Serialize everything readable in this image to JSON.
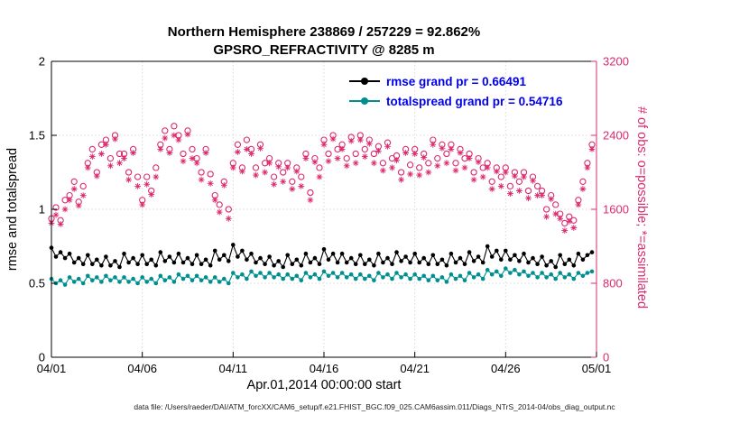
{
  "colors": {
    "pink": "#dc2a6e",
    "teal": "#008f8f",
    "black": "#000000",
    "legend_text": "#0000ee",
    "grid": "#d9d9d9"
  },
  "footer": {
    "text": "data file: /Users/raeder/DAI/ATM_forcXX/CAM6_setup/f.e21.FHIST_BGC.f09_025.CAM6assim.011/Diags_NTrS_2014-04/obs_diag_output.nc"
  },
  "chart_data": {
    "type": "line",
    "title1": "Northern Hemisphere 238869 / 257229 = 92.862%",
    "title2": "GPSRO_REFRACTIVITY @ 8285 m",
    "xlabel": "Apr.01,2014 00:00:00 start",
    "ylabel_left": "rmse and totalspread",
    "ylabel_right": "# of obs: o=possible; *=assimilated",
    "xlim": [
      0,
      30
    ],
    "ylim_left": [
      0,
      2
    ],
    "ylim_right": [
      0,
      3200
    ],
    "grid": true,
    "xtick_days": [
      0,
      5,
      10,
      15,
      20,
      25,
      30
    ],
    "xtick_labels": [
      "04/01",
      "04/06",
      "04/11",
      "04/16",
      "04/21",
      "04/26",
      "05/01"
    ],
    "yticks_left_values": [
      0,
      0.5,
      1,
      1.5,
      2
    ],
    "ytick_labels_left": [
      "0",
      "0.5",
      "1",
      "1.5",
      "2"
    ],
    "yticks_right_values": [
      0,
      800,
      1600,
      2400,
      3200
    ],
    "ytick_labels_right": [
      "0",
      "800",
      "1600",
      "2400",
      "3200"
    ],
    "x_days": {
      "start": 0,
      "step": 0.25,
      "count": 120
    },
    "legend": {
      "position": "top-center",
      "entries": [
        {
          "label": "rmse grand pr = 0.66491",
          "color": "#000000",
          "marker": "dot-line"
        },
        {
          "label": "totalspread grand pr = 0.54716",
          "color": "#008f8f",
          "marker": "dot-line"
        }
      ]
    },
    "series": [
      {
        "name": "rmse",
        "axis": "left",
        "style": "line",
        "marker": "dot",
        "color": "#000000",
        "values": [
          0.74,
          0.68,
          0.71,
          0.67,
          0.7,
          0.64,
          0.67,
          0.63,
          0.69,
          0.63,
          0.66,
          0.62,
          0.68,
          0.62,
          0.65,
          0.61,
          0.7,
          0.64,
          0.67,
          0.63,
          0.69,
          0.63,
          0.66,
          0.62,
          0.71,
          0.65,
          0.68,
          0.64,
          0.7,
          0.64,
          0.67,
          0.63,
          0.69,
          0.63,
          0.66,
          0.62,
          0.72,
          0.66,
          0.69,
          0.65,
          0.76,
          0.68,
          0.72,
          0.66,
          0.7,
          0.64,
          0.67,
          0.63,
          0.68,
          0.62,
          0.65,
          0.61,
          0.69,
          0.63,
          0.66,
          0.62,
          0.7,
          0.64,
          0.67,
          0.63,
          0.73,
          0.66,
          0.7,
          0.64,
          0.7,
          0.64,
          0.67,
          0.63,
          0.69,
          0.63,
          0.66,
          0.62,
          0.7,
          0.64,
          0.67,
          0.63,
          0.71,
          0.65,
          0.68,
          0.64,
          0.7,
          0.64,
          0.67,
          0.63,
          0.69,
          0.63,
          0.66,
          0.62,
          0.7,
          0.64,
          0.67,
          0.63,
          0.71,
          0.65,
          0.68,
          0.64,
          0.75,
          0.68,
          0.72,
          0.66,
          0.72,
          0.66,
          0.69,
          0.65,
          0.7,
          0.64,
          0.67,
          0.63,
          0.68,
          0.62,
          0.65,
          0.61,
          0.69,
          0.63,
          0.66,
          0.62,
          0.7,
          0.66,
          0.69,
          0.71
        ]
      },
      {
        "name": "totalspread",
        "axis": "left",
        "style": "line",
        "marker": "dot",
        "color": "#008f8f",
        "values": [
          0.53,
          0.5,
          0.52,
          0.49,
          0.54,
          0.51,
          0.53,
          0.5,
          0.55,
          0.52,
          0.54,
          0.51,
          0.55,
          0.52,
          0.54,
          0.51,
          0.54,
          0.51,
          0.53,
          0.5,
          0.54,
          0.51,
          0.53,
          0.5,
          0.55,
          0.52,
          0.54,
          0.51,
          0.56,
          0.53,
          0.55,
          0.52,
          0.55,
          0.52,
          0.54,
          0.51,
          0.54,
          0.51,
          0.53,
          0.5,
          0.57,
          0.54,
          0.56,
          0.53,
          0.58,
          0.55,
          0.57,
          0.54,
          0.57,
          0.54,
          0.56,
          0.53,
          0.56,
          0.53,
          0.55,
          0.52,
          0.57,
          0.54,
          0.56,
          0.53,
          0.58,
          0.55,
          0.57,
          0.54,
          0.57,
          0.54,
          0.56,
          0.53,
          0.56,
          0.53,
          0.55,
          0.52,
          0.57,
          0.54,
          0.56,
          0.53,
          0.57,
          0.54,
          0.56,
          0.53,
          0.56,
          0.53,
          0.55,
          0.52,
          0.55,
          0.52,
          0.54,
          0.51,
          0.56,
          0.53,
          0.55,
          0.52,
          0.57,
          0.54,
          0.56,
          0.53,
          0.59,
          0.56,
          0.58,
          0.55,
          0.6,
          0.57,
          0.59,
          0.56,
          0.58,
          0.55,
          0.57,
          0.54,
          0.57,
          0.54,
          0.56,
          0.53,
          0.57,
          0.54,
          0.56,
          0.53,
          0.57,
          0.55,
          0.57,
          0.58
        ]
      },
      {
        "name": "possible",
        "axis": "right",
        "style": "scatter",
        "marker": "circle",
        "color": "#dc2a6e",
        "values": [
          1500,
          1620,
          1480,
          1700,
          1750,
          1900,
          1680,
          1850,
          2100,
          2250,
          2000,
          2300,
          2350,
          2150,
          2400,
          2200,
          2200,
          2000,
          2250,
          1950,
          1700,
          1950,
          1800,
          2050,
          2300,
          2450,
          2250,
          2500,
          2400,
          2200,
          2450,
          2250,
          2150,
          2000,
          2250,
          1980,
          1750,
          1650,
          1900,
          1600,
          2100,
          2300,
          2050,
          2350,
          2250,
          2050,
          2300,
          2100,
          2150,
          1950,
          2100,
          2000,
          2100,
          1900,
          2050,
          1950,
          2200,
          1780,
          2150,
          2050,
          2350,
          2200,
          2400,
          2250,
          2300,
          2150,
          2380,
          2200,
          2400,
          2250,
          2350,
          2200,
          2280,
          2100,
          2320,
          2150,
          2180,
          2000,
          2250,
          2080,
          2250,
          2050,
          2200,
          2100,
          2350,
          2150,
          2300,
          2200,
          2300,
          2100,
          2250,
          2150,
          2200,
          2000,
          2150,
          2050,
          2100,
          1900,
          2050,
          1950,
          2050,
          1850,
          2000,
          1900,
          2000,
          1800,
          1950,
          1850,
          1800,
          1600,
          1750,
          1650,
          1550,
          1450,
          1520,
          1480,
          1700,
          1900,
          2100,
          2300
        ]
      },
      {
        "name": "assimilated",
        "axis": "right",
        "style": "scatter",
        "marker": "asterisk",
        "color": "#dc2a6e",
        "values": [
          1450,
          1540,
          1440,
          1600,
          1700,
          1820,
          1640,
          1750,
          2050,
          2170,
          1960,
          2200,
          2300,
          2070,
          2360,
          2100,
          2150,
          1920,
          2210,
          1850,
          1650,
          1870,
          1760,
          1950,
          2250,
          2370,
          2210,
          2400,
          2350,
          2120,
          2410,
          2150,
          2100,
          1920,
          2210,
          1880,
          1700,
          1570,
          1860,
          1500,
          2050,
          2220,
          2010,
          2250,
          2200,
          1970,
          2260,
          2000,
          2100,
          1870,
          2060,
          1900,
          2050,
          1820,
          2010,
          1850,
          2150,
          1700,
          2110,
          1950,
          2300,
          2120,
          2360,
          2150,
          2250,
          2070,
          2340,
          2100,
          2350,
          2170,
          2310,
          2100,
          2230,
          2020,
          2280,
          2050,
          2130,
          1920,
          2210,
          1980,
          2200,
          1970,
          2160,
          2000,
          2300,
          2070,
          2260,
          2100,
          2250,
          2020,
          2210,
          2050,
          2150,
          1920,
          2110,
          1950,
          2050,
          1820,
          2010,
          1850,
          2000,
          1770,
          1960,
          1800,
          1950,
          1720,
          1910,
          1750,
          1750,
          1520,
          1710,
          1550,
          1500,
          1370,
          1470,
          1400,
          1650,
          1820,
          2050,
          2250
        ]
      }
    ]
  }
}
